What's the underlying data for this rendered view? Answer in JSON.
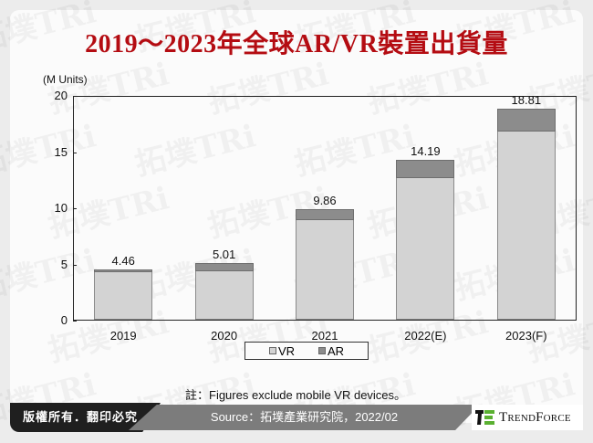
{
  "title": "2019～2023年全球AR/VR裝置出貨量",
  "unit_label": "(M Units)",
  "y_ticks": [
    "0",
    "5",
    "10",
    "15",
    "20"
  ],
  "legend": {
    "vr": "VR",
    "ar": "AR"
  },
  "note": "註：Figures exclude mobile VR devices。",
  "footer": {
    "copyright": "版權所有．翻印必究",
    "source": "Source：拓墣產業研究院，2022/02",
    "brand": "TrendForce"
  },
  "watermark": "拓墣TRi TOPOLOGY RESEARCH INSTITUTE",
  "colors": {
    "title": "#b40c12",
    "vr": "#d3d3d3",
    "ar": "#8c8c8c",
    "logo_green": "#5ab031"
  },
  "bars": [
    {
      "label": "2019",
      "total": "4.46",
      "vr": 4.3,
      "ar": 0.16
    },
    {
      "label": "2020",
      "total": "5.01",
      "vr": 4.41,
      "ar": 0.6
    },
    {
      "label": "2021",
      "total": "9.86",
      "vr": 8.96,
      "ar": 0.9
    },
    {
      "label": "2022(E)",
      "total": "14.19",
      "vr": 12.69,
      "ar": 1.5
    },
    {
      "label": "2023(F)",
      "total": "18.81",
      "vr": 16.81,
      "ar": 2.0
    }
  ],
  "chart_data": {
    "type": "bar",
    "stacked": true,
    "title": "2019～2023年全球AR/VR裝置出貨量",
    "xlabel": "",
    "ylabel": "(M Units)",
    "ylim": [
      0,
      20
    ],
    "yticks": [
      0,
      5,
      10,
      15,
      20
    ],
    "categories": [
      "2019",
      "2020",
      "2021",
      "2022(E)",
      "2023(F)"
    ],
    "series": [
      {
        "name": "VR",
        "values": [
          4.3,
          4.41,
          8.96,
          12.69,
          16.81
        ]
      },
      {
        "name": "AR",
        "values": [
          0.16,
          0.6,
          0.9,
          1.5,
          2.0
        ]
      }
    ],
    "totals": [
      4.46,
      5.01,
      9.86,
      14.19,
      18.81
    ],
    "legend_position": "bottom",
    "grid": false,
    "annotations": [
      "註：Figures exclude mobile VR devices。"
    ]
  }
}
